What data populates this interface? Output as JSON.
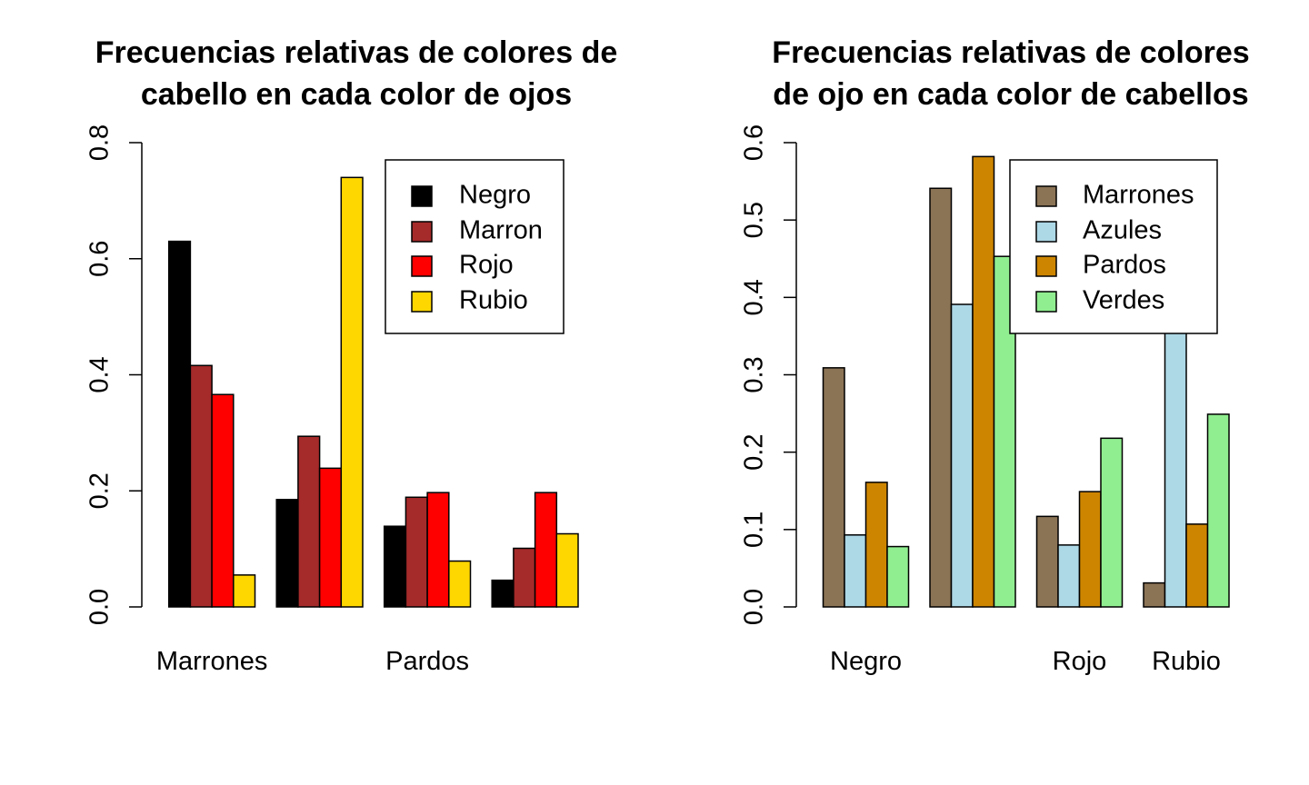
{
  "chart_data": [
    {
      "type": "bar",
      "title_lines": [
        "Frecuencias relativas de colores de",
        "cabello en cada color de ojos"
      ],
      "xlabel": "",
      "ylabel": "",
      "ylim": [
        0,
        0.8
      ],
      "y_ticks": [
        "0.0",
        "0.2",
        "0.4",
        "0.6",
        "0.8"
      ],
      "categories": [
        "Marrones",
        "",
        "Pardos",
        ""
      ],
      "legend_position": "top-right",
      "grid": false,
      "series": [
        {
          "name": "Negro",
          "color": "#000000",
          "values": [
            0.63,
            0.185,
            0.139,
            0.046
          ]
        },
        {
          "name": "Marron",
          "color": "#A52A2A",
          "values": [
            0.416,
            0.294,
            0.189,
            0.101
          ]
        },
        {
          "name": "Rojo",
          "color": "#FF0000",
          "values": [
            0.366,
            0.239,
            0.197,
            0.197
          ]
        },
        {
          "name": "Rubio",
          "color": "#FFD700",
          "values": [
            0.055,
            0.74,
            0.079,
            0.126
          ]
        }
      ]
    },
    {
      "type": "bar",
      "title_lines": [
        "Frecuencias relativas de colores",
        "de ojo en cada color de cabellos"
      ],
      "xlabel": "",
      "ylabel": "",
      "ylim": [
        0,
        0.6
      ],
      "y_ticks": [
        "0.0",
        "0.1",
        "0.2",
        "0.3",
        "0.4",
        "0.5",
        "0.6"
      ],
      "categories": [
        "Negro",
        "",
        "Rojo",
        "Rubio"
      ],
      "legend_position": "top-right",
      "grid": false,
      "series": [
        {
          "name": "Marrones",
          "color": "#8B7355",
          "values": [
            0.309,
            0.541,
            0.117,
            0.031
          ]
        },
        {
          "name": "Azules",
          "color": "#ADD8E6",
          "values": [
            0.093,
            0.391,
            0.08,
            0.567
          ]
        },
        {
          "name": "Pardos",
          "color": "#CD8500",
          "values": [
            0.161,
            0.582,
            0.149,
            0.107
          ]
        },
        {
          "name": "Verdes",
          "color": "#90EE90",
          "values": [
            0.078,
            0.453,
            0.218,
            0.249
          ]
        }
      ]
    }
  ]
}
